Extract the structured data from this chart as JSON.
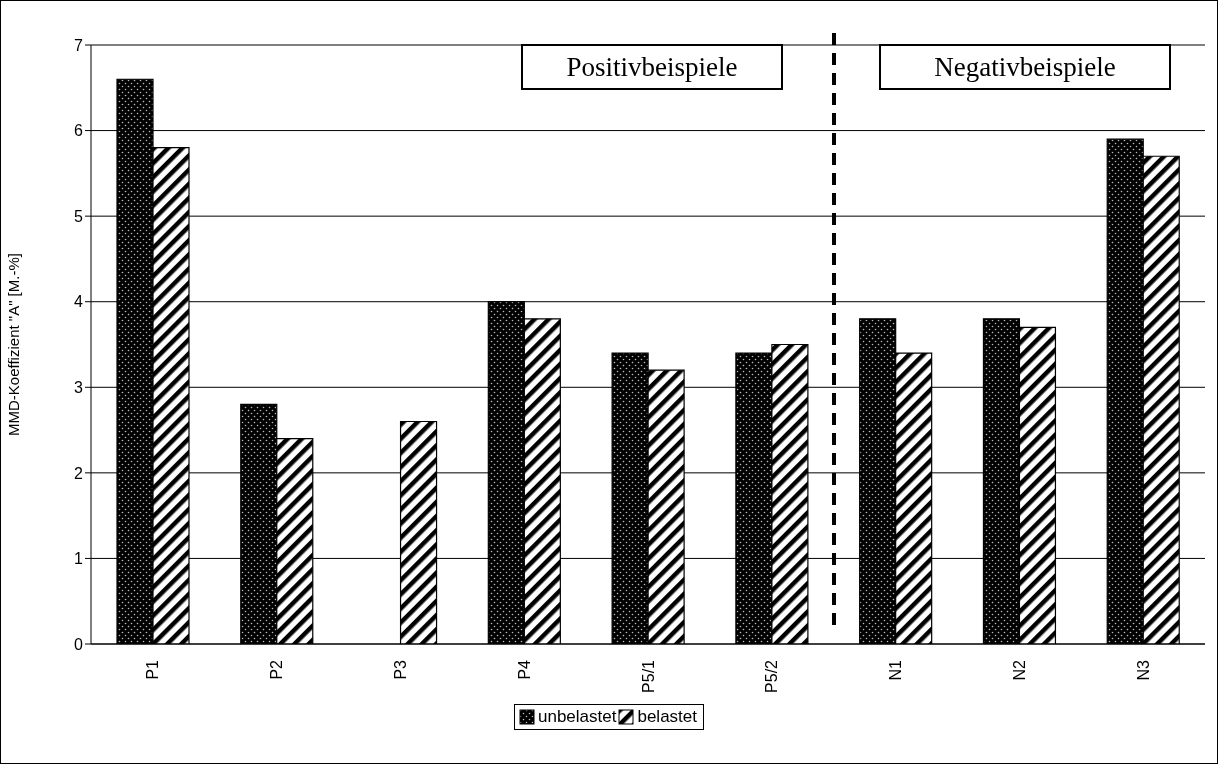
{
  "chart_data": {
    "type": "bar",
    "ylabel": "MMD-Koeffizient \"A\" [M.-%]",
    "categories": [
      "P1",
      "P2",
      "P3",
      "P4",
      "P5/1",
      "P5/2",
      "N1",
      "N2",
      "N3"
    ],
    "series": [
      {
        "name": "unbelastet",
        "color": "#000000",
        "values": [
          6.6,
          2.8,
          null,
          4.0,
          3.4,
          3.4,
          3.8,
          3.8,
          5.9
        ]
      },
      {
        "name": "belastet",
        "color": "#000000",
        "values": [
          5.8,
          2.4,
          2.6,
          3.8,
          3.2,
          3.5,
          3.4,
          3.7,
          5.7
        ]
      }
    ],
    "ylim": [
      0,
      7
    ],
    "yticks": [
      0,
      1,
      2,
      3,
      4,
      5,
      6,
      7
    ],
    "grid": "y",
    "legend": "bottom",
    "annotations": [
      "Positivbeispiele",
      "Negativbeispiele"
    ]
  }
}
